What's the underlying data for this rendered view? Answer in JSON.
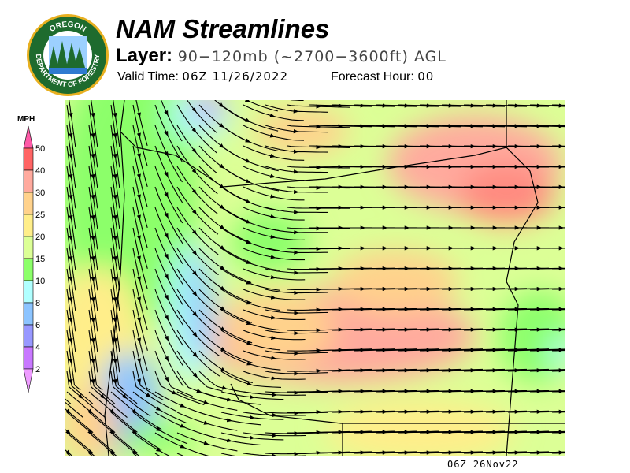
{
  "logo": {
    "text": "OREGON DEPARTMENT OF FORESTRY"
  },
  "header": {
    "title": "NAM Streamlines",
    "layer_label": "Layer:",
    "layer_value": "90−120mb (~2700−3600ft) AGL",
    "valid_label": "Valid Time:",
    "valid_value": "06Z 11/26/2022",
    "forecast_label": "Forecast Hour:",
    "forecast_value": "00"
  },
  "legend": {
    "unit": "MPH",
    "ticks": [
      "50",
      "40",
      "30",
      "25",
      "20",
      "15",
      "10",
      "8",
      "6",
      "4",
      "2"
    ],
    "colors": [
      "#ff5aa8",
      "#ff6464",
      "#ffaa9e",
      "#ffd28c",
      "#ffee8a",
      "#dcff96",
      "#8cff6a",
      "#b0ffff",
      "#8cc4ff",
      "#9898ff",
      "#c878ff",
      "#ee9cff"
    ]
  },
  "footer": {
    "stamp": "06Z 26Nov22"
  }
}
